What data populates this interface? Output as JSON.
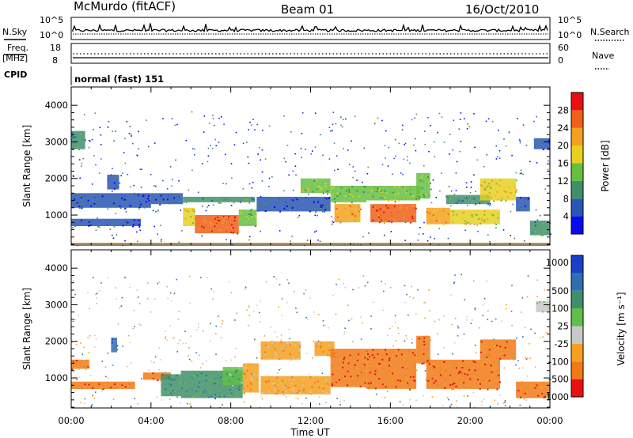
{
  "header": {
    "station": "McMurdo (fitACF)",
    "beam": "Beam 01",
    "date": "16/Oct/2010"
  },
  "summary_panel": {
    "left_labels": {
      "n_sky": "N.Sky",
      "freq_line1": "Freq.",
      "freq_line2": "[MHz]",
      "cpid": "CPID"
    },
    "right_labels": {
      "n_search": "N.Search",
      "nave": "Nave"
    },
    "nsky_ticks": [
      "10^5",
      "10^0"
    ],
    "freq_ticks": [
      "18",
      "8"
    ],
    "nave_ticks": [
      "60",
      "0"
    ],
    "cpid_text": "normal (fast) 151"
  },
  "chart_data": [
    {
      "type": "heatmap",
      "panel": "power",
      "ylabel": "Slant Range [km]",
      "y_ticks": [
        "1000",
        "2000",
        "3000",
        "4000"
      ],
      "ylim": [
        180,
        4500
      ],
      "xlim_hours": [
        0,
        24
      ],
      "colorbar_label": "Power [dB]",
      "colorbar_ticks": [
        "4",
        "8",
        "12",
        "16",
        "20",
        "24",
        "28"
      ],
      "colors": [
        "#0a0af0",
        "#2a55b5",
        "#3f8f6a",
        "#66c040",
        "#e8d020",
        "#f5a020",
        "#f06018",
        "#e81010"
      ],
      "regions": [
        {
          "t0": 0.0,
          "t1": 0.7,
          "r0": 2800,
          "r1": 3300,
          "level": 2
        },
        {
          "t0": 0.0,
          "t1": 4.0,
          "r0": 1200,
          "r1": 1600,
          "level": 1
        },
        {
          "t0": 0.0,
          "t1": 3.5,
          "r0": 700,
          "r1": 900,
          "level": 1
        },
        {
          "t0": 1.8,
          "t1": 2.4,
          "r0": 1700,
          "r1": 2100,
          "level": 1
        },
        {
          "t0": 4.0,
          "t1": 5.6,
          "r0": 1300,
          "r1": 1600,
          "level": 1
        },
        {
          "t0": 5.6,
          "t1": 9.2,
          "r0": 1350,
          "r1": 1500,
          "level": 2
        },
        {
          "t0": 5.6,
          "t1": 6.2,
          "r0": 700,
          "r1": 1200,
          "level": 4
        },
        {
          "t0": 6.2,
          "t1": 8.4,
          "r0": 500,
          "r1": 1000,
          "level": 6
        },
        {
          "t0": 8.4,
          "t1": 9.3,
          "r0": 700,
          "r1": 1150,
          "level": 3
        },
        {
          "t0": 9.3,
          "t1": 13.0,
          "r0": 1100,
          "r1": 1500,
          "level": 1
        },
        {
          "t0": 11.5,
          "t1": 13.0,
          "r0": 1600,
          "r1": 2000,
          "level": 3
        },
        {
          "t0": 13.0,
          "t1": 14.8,
          "r0": 1350,
          "r1": 1800,
          "level": 3
        },
        {
          "t0": 13.2,
          "t1": 14.5,
          "r0": 800,
          "r1": 1300,
          "level": 5
        },
        {
          "t0": 14.8,
          "t1": 17.5,
          "r0": 1400,
          "r1": 1800,
          "level": 3
        },
        {
          "t0": 15.0,
          "t1": 17.3,
          "r0": 800,
          "r1": 1300,
          "level": 6
        },
        {
          "t0": 17.3,
          "t1": 18.0,
          "r0": 1450,
          "r1": 2150,
          "level": 3
        },
        {
          "t0": 17.8,
          "t1": 19.0,
          "r0": 750,
          "r1": 1200,
          "level": 5
        },
        {
          "t0": 18.8,
          "t1": 21.0,
          "r0": 1300,
          "r1": 1550,
          "level": 2
        },
        {
          "t0": 19.0,
          "t1": 21.5,
          "r0": 750,
          "r1": 1150,
          "level": 4
        },
        {
          "t0": 20.5,
          "t1": 22.3,
          "r0": 1400,
          "r1": 2000,
          "level": 4
        },
        {
          "t0": 22.3,
          "t1": 23.0,
          "r0": 1100,
          "r1": 1500,
          "level": 1
        },
        {
          "t0": 23.0,
          "t1": 24.0,
          "r0": 450,
          "r1": 850,
          "level": 2
        },
        {
          "t0": 23.2,
          "t1": 24.0,
          "r0": 2800,
          "r1": 3100,
          "level": 1
        }
      ]
    },
    {
      "type": "heatmap",
      "panel": "velocity",
      "ylabel": "Slant Range [km]",
      "y_ticks": [
        "1000",
        "2000",
        "3000",
        "4000"
      ],
      "ylim": [
        180,
        4500
      ],
      "xlim_hours": [
        0,
        24
      ],
      "colorbar_label": "Velocity [m s⁻¹]",
      "colorbar_ticks": [
        "1000",
        "500",
        "100",
        "25",
        "-25",
        "-100",
        "-500",
        "-1000"
      ],
      "colors": [
        "#1a3fc8",
        "#2e6fb0",
        "#3f8f6a",
        "#5fbf48",
        "#c8c8c8",
        "#f5a020",
        "#f07a18",
        "#e81010"
      ],
      "regions": [
        {
          "t0": 0.0,
          "t1": 0.9,
          "r0": 1250,
          "r1": 1500,
          "level": 6
        },
        {
          "t0": 0.0,
          "t1": 3.2,
          "r0": 700,
          "r1": 900,
          "level": 6
        },
        {
          "t0": 2.0,
          "t1": 2.3,
          "r0": 1700,
          "r1": 2100,
          "level": 1
        },
        {
          "t0": 3.6,
          "t1": 5.0,
          "r0": 950,
          "r1": 1150,
          "level": 6
        },
        {
          "t0": 4.5,
          "t1": 5.5,
          "r0": 500,
          "r1": 1100,
          "level": 2
        },
        {
          "t0": 5.5,
          "t1": 8.6,
          "r0": 450,
          "r1": 1200,
          "level": 2
        },
        {
          "t0": 7.6,
          "t1": 8.6,
          "r0": 800,
          "r1": 1300,
          "level": 3
        },
        {
          "t0": 8.6,
          "t1": 9.4,
          "r0": 600,
          "r1": 1400,
          "level": 5
        },
        {
          "t0": 9.5,
          "t1": 11.5,
          "r0": 1500,
          "r1": 2000,
          "level": 5
        },
        {
          "t0": 9.5,
          "t1": 13.0,
          "r0": 550,
          "r1": 1050,
          "level": 5
        },
        {
          "t0": 12.2,
          "t1": 13.2,
          "r0": 1600,
          "r1": 2000,
          "level": 5
        },
        {
          "t0": 13.0,
          "t1": 14.8,
          "r0": 750,
          "r1": 1800,
          "level": 6
        },
        {
          "t0": 14.8,
          "t1": 17.3,
          "r0": 700,
          "r1": 1800,
          "level": 6
        },
        {
          "t0": 17.3,
          "t1": 18.0,
          "r0": 1400,
          "r1": 2150,
          "level": 6
        },
        {
          "t0": 17.8,
          "t1": 21.5,
          "r0": 700,
          "r1": 1500,
          "level": 6
        },
        {
          "t0": 20.5,
          "t1": 22.3,
          "r0": 1500,
          "r1": 2050,
          "level": 6
        },
        {
          "t0": 22.3,
          "t1": 24.0,
          "r0": 450,
          "r1": 900,
          "level": 6
        },
        {
          "t0": 23.3,
          "t1": 24.0,
          "r0": 2800,
          "r1": 3100,
          "level": 4
        }
      ]
    }
  ],
  "x_axis": {
    "label": "Time UT",
    "tick_labels": [
      "00:00",
      "04:00",
      "08:00",
      "12:00",
      "16:00",
      "20:00",
      "00:00"
    ],
    "tick_hours": [
      0,
      4,
      8,
      12,
      16,
      20,
      24
    ]
  }
}
